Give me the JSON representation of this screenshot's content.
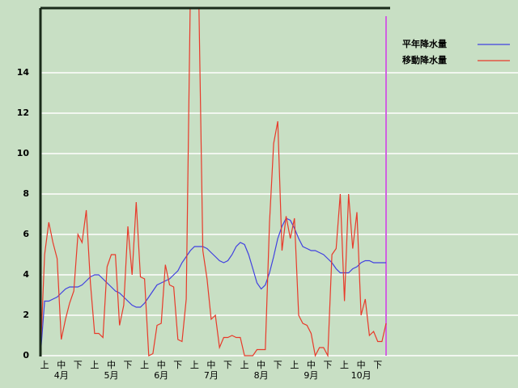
{
  "chart_data": {
    "type": "line",
    "categories": [
      null,
      "上",
      null,
      null,
      null,
      "中",
      null,
      null,
      null,
      "下",
      null,
      null,
      null,
      "上",
      null,
      null,
      null,
      "中",
      null,
      null,
      null,
      "下",
      null,
      null,
      null,
      "上",
      null,
      null,
      null,
      "中",
      null,
      null,
      null,
      "下",
      null,
      null,
      null,
      "上",
      null,
      null,
      null,
      "中",
      null,
      null,
      null,
      "下",
      null,
      null,
      null,
      "上",
      null,
      null,
      null,
      "中",
      null,
      null,
      null,
      "下",
      null,
      null,
      null,
      "上",
      null,
      null,
      null,
      "中",
      null,
      null,
      null,
      "下",
      null,
      null,
      null,
      "上",
      null,
      null,
      null,
      "中",
      null,
      null,
      null,
      "下",
      null,
      null
    ],
    "months": [
      "4月",
      "5月",
      "6月",
      "7月",
      "8月",
      "9月",
      "10月"
    ],
    "series": [
      {
        "name": "平年降水量",
        "color": "#4040e0",
        "values": [
          0,
          2.7,
          2.7,
          2.8,
          2.9,
          3.1,
          3.3,
          3.4,
          3.4,
          3.4,
          3.5,
          3.7,
          3.9,
          4.0,
          4.0,
          3.8,
          3.6,
          3.4,
          3.2,
          3.1,
          2.9,
          2.7,
          2.5,
          2.4,
          2.4,
          2.6,
          2.9,
          3.2,
          3.5,
          3.6,
          3.7,
          3.8,
          4.0,
          4.2,
          4.6,
          4.9,
          5.2,
          5.4,
          5.4,
          5.4,
          5.3,
          5.1,
          4.9,
          4.7,
          4.6,
          4.7,
          5.0,
          5.4,
          5.6,
          5.5,
          5.0,
          4.3,
          3.6,
          3.3,
          3.5,
          4.1,
          4.9,
          5.8,
          6.4,
          6.8,
          6.7,
          6.3,
          5.8,
          5.4,
          5.3,
          5.2,
          5.2,
          5.1,
          5.0,
          4.8,
          4.6,
          4.3,
          4.1,
          4.1,
          4.1,
          4.3,
          4.4,
          4.6,
          4.7,
          4.7,
          4.6,
          4.6,
          4.6,
          4.6
        ]
      },
      {
        "name": "移動降水量",
        "color": "#e83a2a",
        "values": [
          0,
          5.0,
          6.6,
          5.6,
          4.8,
          0.8,
          1.8,
          2.6,
          3.2,
          6.0,
          5.6,
          7.2,
          3.6,
          1.1,
          1.1,
          0.9,
          4.4,
          5.0,
          5.0,
          1.5,
          2.5,
          6.4,
          4.0,
          7.6,
          3.9,
          3.8,
          0.0,
          0.1,
          1.5,
          1.6,
          4.5,
          3.5,
          3.4,
          0.8,
          0.7,
          2.8,
          18,
          18,
          18,
          5.2,
          3.8,
          1.8,
          2.0,
          0.4,
          0.9,
          0.9,
          1.0,
          0.9,
          0.9,
          0.0,
          0.0,
          0.0,
          0.3,
          0.3,
          0.3,
          6.6,
          10.5,
          11.6,
          5.2,
          6.9,
          5.8,
          6.8,
          2.0,
          1.6,
          1.5,
          1.1,
          0.0,
          0.4,
          0.4,
          0.0,
          5.0,
          5.3,
          8.0,
          2.7,
          8.0,
          5.3,
          7.1,
          2.0,
          2.8,
          1.0,
          1.2,
          0.7,
          0.7,
          1.6
        ]
      }
    ],
    "ylim": [
      0,
      17.2
    ],
    "yticks": [
      0,
      2,
      4,
      6,
      8,
      10,
      12,
      14
    ],
    "grid": true,
    "legend": "right"
  }
}
